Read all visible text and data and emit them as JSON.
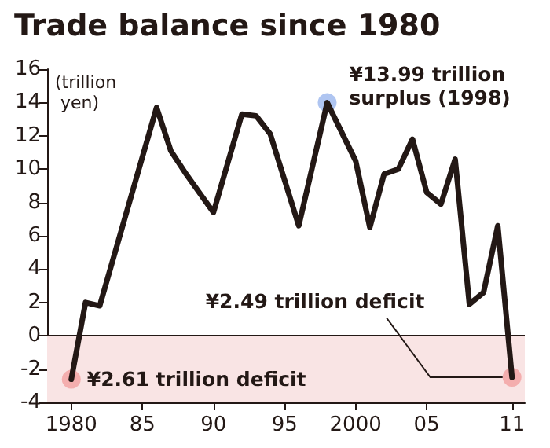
{
  "chart_data": {
    "type": "line",
    "title": "Trade balance since 1980",
    "ylabel": "(trillion yen)",
    "x": [
      1980,
      1981,
      1982,
      1986,
      1987,
      1988,
      1990,
      1992,
      1993,
      1994,
      1996,
      1998,
      2000,
      2001,
      2002,
      2003,
      2004,
      2005,
      2006,
      2007,
      2008,
      2009,
      2010,
      2011
    ],
    "series": [
      {
        "color": "#231815",
        "values": [
          -2.61,
          2.0,
          1.8,
          13.7,
          11.1,
          9.8,
          7.4,
          13.3,
          13.2,
          12.1,
          6.6,
          13.99,
          10.5,
          6.5,
          9.7,
          10.0,
          11.8,
          8.6,
          7.9,
          10.6,
          1.9,
          2.6,
          6.6,
          -2.49
        ]
      }
    ],
    "xlim": [
      1978.3,
      2011.9
    ],
    "xticks": [
      1980,
      {
        "value": 1985,
        "label": "85"
      },
      {
        "value": 1990,
        "label": "90"
      },
      {
        "value": 1995,
        "label": "95"
      },
      2000,
      {
        "value": 2005,
        "label": "05"
      },
      {
        "value": 2011,
        "label": "11"
      }
    ],
    "ylim": [
      -4,
      16
    ],
    "yticks": [
      -4,
      -2,
      0,
      2,
      4,
      6,
      8,
      10,
      12,
      14,
      16
    ],
    "ref_lines": [
      {
        "axis": "y",
        "value": 0,
        "color": "#231815"
      }
    ],
    "bands": [
      {
        "axis": "y",
        "from": -4,
        "to": 0,
        "color": "#f9e4e4"
      }
    ],
    "annotations": [
      {
        "text": "¥13.99 trillion surplus (1998)",
        "x": 1998,
        "y": 13.99
      },
      {
        "text": "¥2.61 trillion deficit",
        "x": 1980,
        "y": -2.61
      },
      {
        "text": "¥2.49 trillion deficit",
        "x": 2011,
        "y": -2.49
      }
    ],
    "marker": "none",
    "line_style": "solid",
    "grid": false
  }
}
